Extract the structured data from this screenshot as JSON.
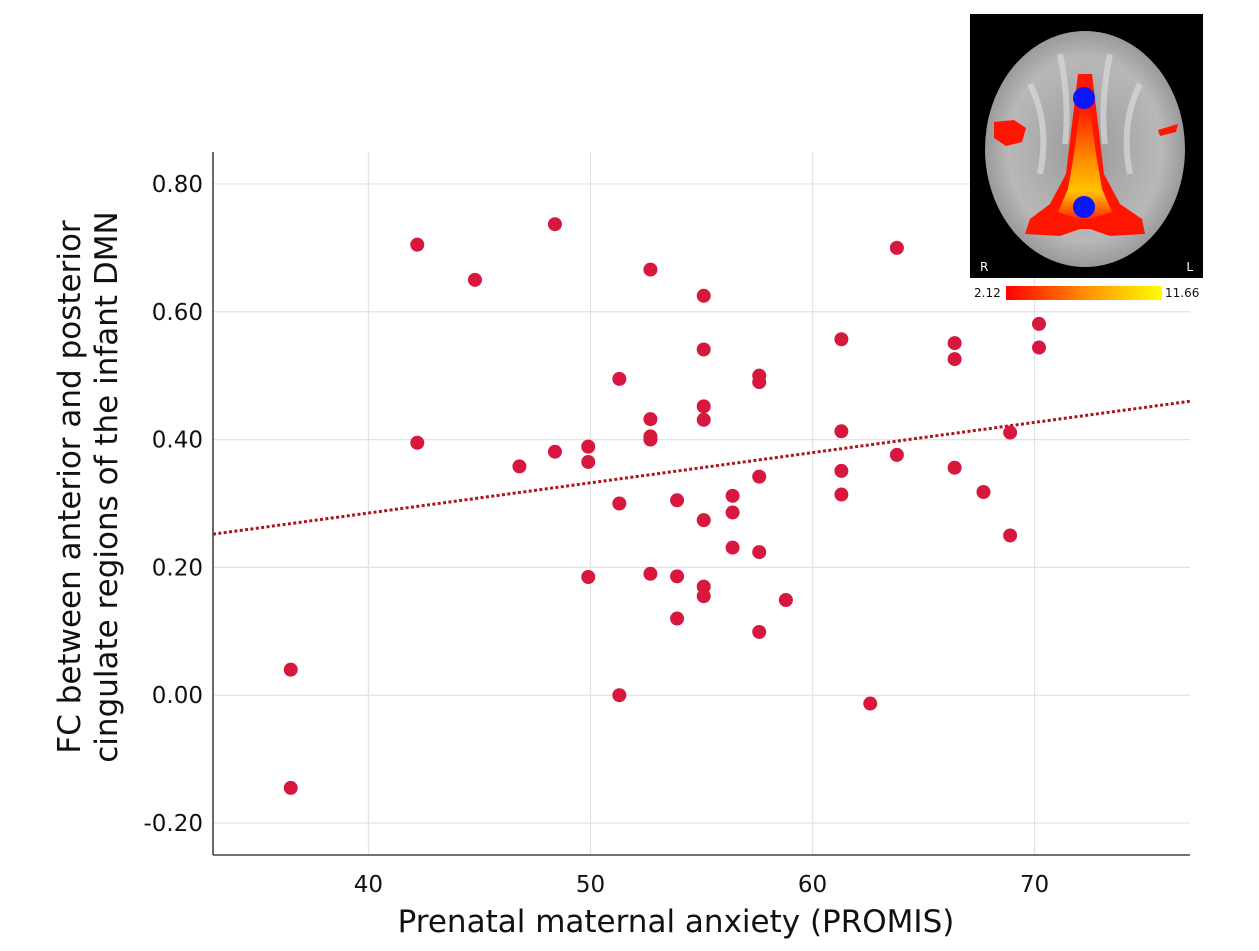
{
  "chart_data": {
    "type": "scatter",
    "title": "",
    "xlabel": "Prenatal maternal anxiety (PROMIS)",
    "ylabel_line1": "FC between anterior and posterior",
    "ylabel_line2": "cingulate regions of the infant DMN",
    "xlim": [
      33,
      77
    ],
    "ylim": [
      -0.25,
      0.85
    ],
    "x_ticks": [
      40,
      50,
      60,
      70
    ],
    "y_ticks": [
      -0.2,
      0.0,
      0.2,
      0.4,
      0.6,
      0.8
    ],
    "x_tick_labels": [
      "40",
      "50",
      "60",
      "70"
    ],
    "y_tick_labels": [
      "-0.20",
      "0.00",
      "0.20",
      "0.40",
      "0.60",
      "0.80"
    ],
    "grid": true,
    "points": [
      {
        "x": 36.5,
        "y": 0.04
      },
      {
        "x": 36.5,
        "y": -0.145
      },
      {
        "x": 42.2,
        "y": 0.705
      },
      {
        "x": 42.2,
        "y": 0.395
      },
      {
        "x": 44.8,
        "y": 0.65
      },
      {
        "x": 46.8,
        "y": 0.358
      },
      {
        "x": 48.4,
        "y": 0.737
      },
      {
        "x": 48.4,
        "y": 0.381
      },
      {
        "x": 49.9,
        "y": 0.389
      },
      {
        "x": 49.9,
        "y": 0.365
      },
      {
        "x": 49.9,
        "y": 0.185
      },
      {
        "x": 51.3,
        "y": 0.495
      },
      {
        "x": 51.3,
        "y": 0.3
      },
      {
        "x": 51.3,
        "y": 0.0
      },
      {
        "x": 52.7,
        "y": 0.666
      },
      {
        "x": 52.7,
        "y": 0.432
      },
      {
        "x": 52.7,
        "y": 0.405
      },
      {
        "x": 52.7,
        "y": 0.4
      },
      {
        "x": 52.7,
        "y": 0.19
      },
      {
        "x": 53.9,
        "y": 0.305
      },
      {
        "x": 53.9,
        "y": 0.186
      },
      {
        "x": 53.9,
        "y": 0.12
      },
      {
        "x": 55.1,
        "y": 0.625
      },
      {
        "x": 55.1,
        "y": 0.541
      },
      {
        "x": 55.1,
        "y": 0.452
      },
      {
        "x": 55.1,
        "y": 0.431
      },
      {
        "x": 55.1,
        "y": 0.274
      },
      {
        "x": 55.1,
        "y": 0.17
      },
      {
        "x": 55.1,
        "y": 0.155
      },
      {
        "x": 56.4,
        "y": 0.312
      },
      {
        "x": 56.4,
        "y": 0.286
      },
      {
        "x": 56.4,
        "y": 0.231
      },
      {
        "x": 57.6,
        "y": 0.5
      },
      {
        "x": 57.6,
        "y": 0.49
      },
      {
        "x": 57.6,
        "y": 0.342
      },
      {
        "x": 57.6,
        "y": 0.224
      },
      {
        "x": 57.6,
        "y": 0.099
      },
      {
        "x": 58.8,
        "y": 0.149
      },
      {
        "x": 61.3,
        "y": 0.557
      },
      {
        "x": 61.3,
        "y": 0.413
      },
      {
        "x": 61.3,
        "y": 0.351
      },
      {
        "x": 61.3,
        "y": 0.314
      },
      {
        "x": 62.6,
        "y": -0.013
      },
      {
        "x": 63.8,
        "y": 0.7
      },
      {
        "x": 63.8,
        "y": 0.376
      },
      {
        "x": 66.4,
        "y": 0.551
      },
      {
        "x": 66.4,
        "y": 0.526
      },
      {
        "x": 66.4,
        "y": 0.356
      },
      {
        "x": 67.7,
        "y": 0.318
      },
      {
        "x": 68.9,
        "y": 0.411
      },
      {
        "x": 68.9,
        "y": 0.25
      },
      {
        "x": 70.2,
        "y": 0.581
      },
      {
        "x": 70.2,
        "y": 0.544
      }
    ],
    "fit_line": {
      "x": [
        33,
        77
      ],
      "y": [
        0.252,
        0.46
      ],
      "style": "dotted"
    }
  },
  "inset": {
    "left_label": "R",
    "right_label": "L",
    "colorbar_min": "2.12",
    "colorbar_max": "11.66",
    "colorbar_colors": [
      "#ff0000",
      "#ff8c00",
      "#ffff00"
    ]
  },
  "colors": {
    "point": "#d8173f",
    "fit_line": "#b01418",
    "seed": "#0a14ff"
  }
}
